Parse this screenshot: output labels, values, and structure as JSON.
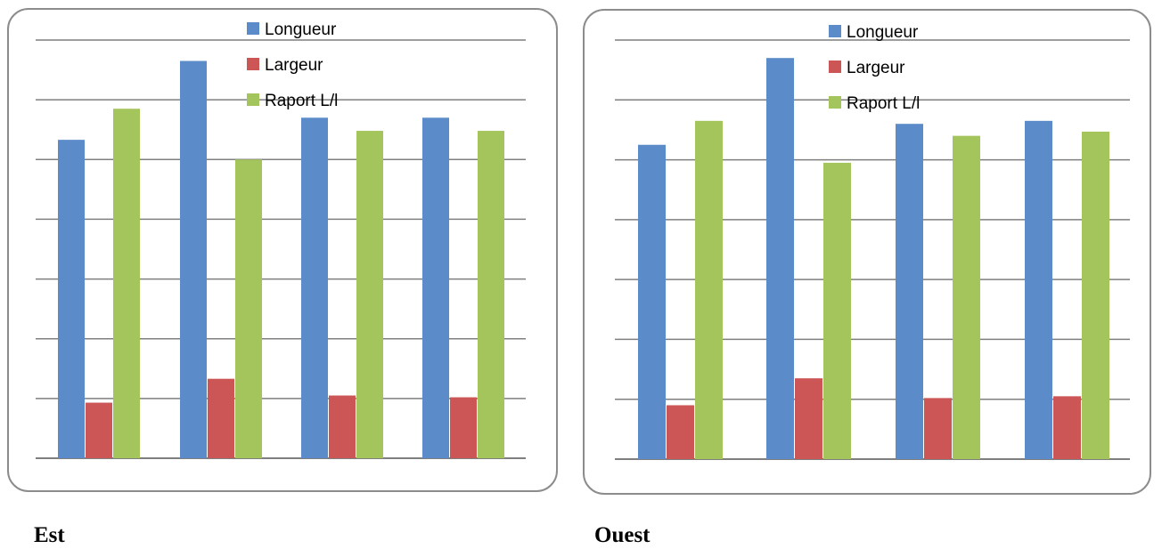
{
  "colors": {
    "longueur": "#5b8bc9",
    "largeur": "#cc5655",
    "rapport": "#a4c45c",
    "grid": "#7f7f7f"
  },
  "captions": {
    "est": "Est",
    "ouest": "Ouest"
  },
  "chart_data": [
    {
      "type": "bar",
      "title": "",
      "xlabel": "",
      "ylabel": "",
      "ylim": [
        0,
        7
      ],
      "grid": true,
      "legend_position": "top-center",
      "categories": [
        "",
        "",
        "",
        ""
      ],
      "series": [
        {
          "name": "Longueur",
          "values": [
            5.33,
            6.65,
            5.7,
            5.7
          ]
        },
        {
          "name": "Largeur",
          "values": [
            0.93,
            1.33,
            1.05,
            1.02
          ]
        },
        {
          "name": "Raport L/l",
          "values": [
            5.85,
            5.0,
            5.48,
            5.48
          ]
        }
      ]
    },
    {
      "type": "bar",
      "title": "",
      "xlabel": "",
      "ylabel": "",
      "ylim": [
        0,
        7
      ],
      "grid": true,
      "legend_position": "top-center",
      "categories": [
        "",
        "",
        "",
        ""
      ],
      "series": [
        {
          "name": "Longueur",
          "values": [
            5.25,
            6.7,
            5.6,
            5.65
          ]
        },
        {
          "name": "Largeur",
          "values": [
            0.9,
            1.35,
            1.02,
            1.05
          ]
        },
        {
          "name": "Raport L/l",
          "values": [
            5.65,
            4.95,
            5.4,
            5.47
          ]
        }
      ]
    }
  ]
}
